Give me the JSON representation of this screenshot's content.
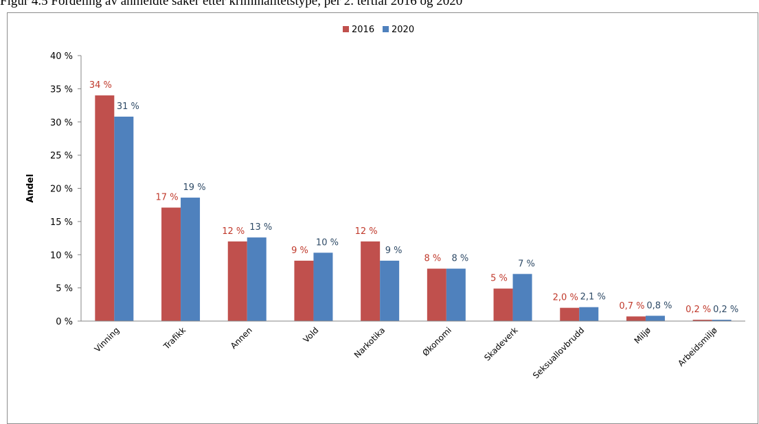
{
  "caption": "Figur 4.5 Fordeling av anmeldte saker etter kriminalitetstype, per 2. tertial 2016 og 2020",
  "colors": {
    "s2016": "#c0504d",
    "s2020": "#4f81bd",
    "axis": "#868686"
  },
  "chart_data": {
    "type": "bar",
    "title": "",
    "xlabel": "",
    "ylabel": "Andel",
    "ylim": [
      0,
      40
    ],
    "ytick_step": 5,
    "ytick_labels": [
      "0 %",
      "5 %",
      "10 %",
      "15 %",
      "20 %",
      "25 %",
      "30 %",
      "35 %",
      "40 %"
    ],
    "grid": false,
    "legend_position": "top-center",
    "categories": [
      "Vinning",
      "Trafikk",
      "Annen",
      "Vold",
      "Narkotika",
      "Økonomi",
      "Skadeverk",
      "Seksuallovbrudd",
      "Miljø",
      "Arbeidsmiljø"
    ],
    "series": [
      {
        "name": "2016",
        "values": [
          34,
          17.1,
          12,
          9.1,
          12,
          7.9,
          4.9,
          2.0,
          0.7,
          0.2
        ],
        "labels": [
          "34 %",
          "17 %",
          "12 %",
          "9 %",
          "12 %",
          "8 %",
          "5 %",
          "2,0 %",
          "0,7 %",
          "0,2 %"
        ]
      },
      {
        "name": "2020",
        "values": [
          30.8,
          18.6,
          12.6,
          10.3,
          9.1,
          7.9,
          7.1,
          2.1,
          0.8,
          0.2
        ],
        "labels": [
          "31 %",
          "19 %",
          "13 %",
          "10 %",
          "9 %",
          "8 %",
          "7 %",
          "2,1 %",
          "0,8 %",
          "0,2 %"
        ]
      }
    ]
  }
}
